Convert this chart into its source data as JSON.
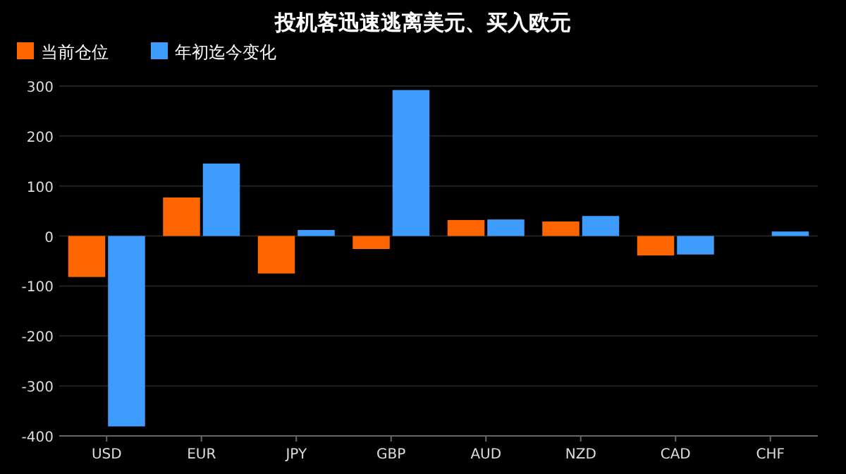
{
  "chart_data": {
    "type": "bar",
    "title": "投机客迅速逃离美元、买入欧元",
    "categories": [
      "USD",
      "EUR",
      "JPY",
      "GBP",
      "AUD",
      "NZD",
      "CAD",
      "CHF"
    ],
    "series": [
      {
        "name": "当前仓位",
        "color": "#ff6600",
        "values": [
          -82,
          77,
          -75,
          -26,
          32,
          29,
          -39,
          0
        ]
      },
      {
        "name": "年初迄今变化",
        "color": "#3f9cff",
        "values": [
          -381,
          145,
          12,
          292,
          33,
          40,
          -37,
          9
        ]
      }
    ],
    "ylim": [
      -400,
      300
    ],
    "yticks": [
      -400,
      -300,
      -200,
      -100,
      0,
      100,
      200,
      300
    ],
    "grid": "y",
    "legend": "top left"
  }
}
